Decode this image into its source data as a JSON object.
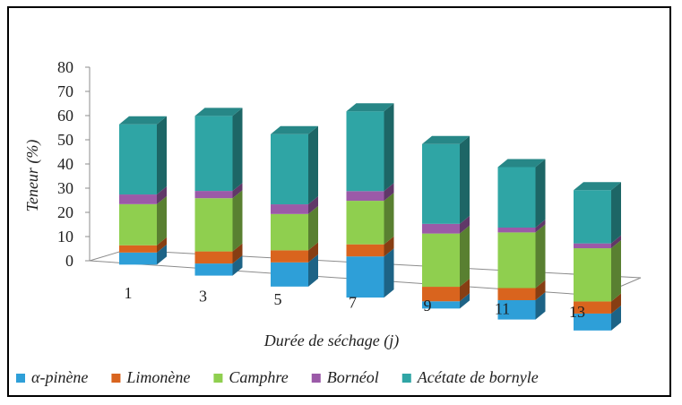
{
  "chart_data": {
    "type": "bar",
    "stacked": true,
    "three_d": true,
    "categories": [
      "1",
      "3",
      "5",
      "7",
      "9",
      "11",
      "13"
    ],
    "xlabel": "Durée de séchage (j)",
    "ylabel": "Teneur (%)",
    "ylim": [
      0,
      80
    ],
    "yticks": [
      "0",
      "10",
      "20",
      "30",
      "40",
      "50",
      "60",
      "70",
      "80"
    ],
    "legend_position": "bottom",
    "series": [
      {
        "name": "α-pinène",
        "color": "#2e9fd8",
        "values": [
          5,
          5,
          10,
          17,
          3,
          8,
          7
        ]
      },
      {
        "name": "Limonène",
        "color": "#d9641e",
        "values": [
          3,
          5,
          5,
          5,
          6,
          5,
          5
        ]
      },
      {
        "name": "Camphre",
        "color": "#8fcf4f",
        "values": [
          17,
          22,
          15,
          18,
          22,
          23,
          22
        ]
      },
      {
        "name": "Bornéol",
        "color": "#9b5aa8",
        "values": [
          4,
          3,
          4,
          4,
          4,
          2,
          2
        ]
      },
      {
        "name": "Acétate de bornyle",
        "color": "#2fa5a5",
        "values": [
          29,
          31,
          29,
          33,
          33,
          25,
          22
        ]
      }
    ]
  }
}
